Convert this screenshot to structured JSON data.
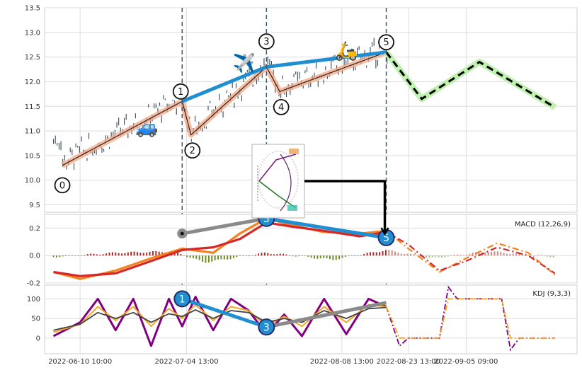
{
  "chart_data": [
    {
      "type": "candlestick",
      "panel": "price",
      "yticks": [
        9.5,
        10.0,
        10.5,
        11.0,
        11.5,
        12.0,
        12.5,
        13.0,
        13.5
      ],
      "ylim": [
        9.35,
        13.5
      ],
      "x_range": [
        "2022-06-02",
        "2022-09-30"
      ],
      "candle_span": [
        "2022-06-04",
        "2022-08-19"
      ],
      "trend_line": {
        "x": [
          "2022-06-06",
          "2022-07-03",
          "2022-07-05",
          "2022-07-22",
          "2022-07-25",
          "2022-08-18"
        ],
        "y": [
          10.3,
          11.6,
          10.92,
          12.3,
          11.8,
          12.6
        ]
      },
      "wave_points": [
        {
          "label": "0",
          "x": "2022-06-06",
          "y": 10.3
        },
        {
          "label": "1",
          "x": "2022-07-03",
          "y": 11.6
        },
        {
          "label": "2",
          "x": "2022-07-05",
          "y": 10.92
        },
        {
          "label": "3",
          "x": "2022-07-22",
          "y": 12.3
        },
        {
          "label": "4",
          "x": "2022-07-25",
          "y": 11.8
        },
        {
          "label": "5",
          "x": "2022-08-18",
          "y": 12.6
        }
      ],
      "blue_projection": {
        "x": [
          "2022-07-03",
          "2022-07-22",
          "2022-08-18"
        ],
        "y": [
          11.6,
          12.3,
          12.6
        ]
      },
      "forecast": {
        "x": [
          "2022-08-18",
          "2022-08-26",
          "2022-09-08",
          "2022-09-25"
        ],
        "y": [
          12.6,
          11.65,
          12.4,
          11.48
        ]
      },
      "vlines": [
        "2022-07-03",
        "2022-07-22",
        "2022-08-18"
      ],
      "emojis": [
        {
          "char": "🚙",
          "x": "2022-06-25",
          "y": 10.95
        },
        {
          "char": "✈️",
          "x": "2022-07-17",
          "y": 12.25
        },
        {
          "char": "🛵",
          "x": "2022-08-09",
          "y": 12.5
        }
      ]
    },
    {
      "type": "line",
      "panel": "macd",
      "title": "MACD (12,26,9)",
      "yticks": [
        -0.2,
        0.0,
        0.2
      ],
      "ylim": [
        -0.2,
        0.3
      ],
      "x": [
        "2022-06-04",
        "2022-06-10",
        "2022-06-18",
        "2022-06-26",
        "2022-07-03",
        "2022-07-10",
        "2022-07-16",
        "2022-07-22",
        "2022-07-28",
        "2022-08-04",
        "2022-08-12",
        "2022-08-18"
      ],
      "series": [
        {
          "color": "#f5821f",
          "values": [
            -0.12,
            -0.17,
            -0.11,
            -0.02,
            0.05,
            0.02,
            0.16,
            0.27,
            0.22,
            0.17,
            0.16,
            0.18
          ]
        },
        {
          "color": "#d62728",
          "values": [
            -0.12,
            -0.15,
            -0.13,
            -0.04,
            0.04,
            0.06,
            0.12,
            0.24,
            0.21,
            0.18,
            0.14,
            0.17
          ]
        }
      ],
      "forecast": {
        "x": [
          "2022-08-18",
          "2022-08-23",
          "2022-08-30",
          "2022-09-05",
          "2022-09-12",
          "2022-09-19",
          "2022-09-25"
        ],
        "series": [
          {
            "color": "#f5821f",
            "values": [
              0.18,
              0.05,
              -0.12,
              -0.02,
              0.09,
              0.02,
              -0.14
            ]
          },
          {
            "color": "#d62728",
            "values": [
              0.17,
              0.08,
              -0.11,
              -0.04,
              0.06,
              0.0,
              -0.13
            ]
          }
        ]
      },
      "histogram": {
        "x": [
          "2022-06-04",
          "2022-06-18",
          "2022-07-01",
          "2022-07-08",
          "2022-07-22",
          "2022-08-06",
          "2022-08-18",
          "2022-08-28",
          "2022-09-10",
          "2022-09-25"
        ],
        "values": [
          -0.01,
          0.02,
          0.03,
          -0.05,
          0.02,
          -0.03,
          0.04,
          -0.02,
          0.03,
          -0.01
        ]
      },
      "markers": [
        {
          "label": "",
          "x": "2022-07-03",
          "y": 0.16
        },
        {
          "label": "3",
          "x": "2022-07-22",
          "y": 0.27
        },
        {
          "label": "5",
          "x": "2022-08-18",
          "y": 0.13
        }
      ]
    },
    {
      "type": "line",
      "panel": "kdj",
      "title": "KDJ (9,3,3)",
      "yticks": [
        0,
        50,
        100
      ],
      "ylim": [
        -40,
        135
      ],
      "x_ticklabels": [
        "2022-06-10 10:00",
        "2022-07-04 13:00",
        "2022-08-08 13:00",
        "2022-08-23 13:00",
        "2022-09-05 09:00"
      ],
      "x_tick_dates": [
        "2022-06-10",
        "2022-07-04",
        "2022-08-08",
        "2022-08-23",
        "2022-09-05"
      ],
      "x": [
        "2022-06-04",
        "2022-06-10",
        "2022-06-14",
        "2022-06-18",
        "2022-06-22",
        "2022-06-26",
        "2022-06-30",
        "2022-07-03",
        "2022-07-06",
        "2022-07-10",
        "2022-07-14",
        "2022-07-18",
        "2022-07-22",
        "2022-07-26",
        "2022-07-30",
        "2022-08-04",
        "2022-08-09",
        "2022-08-14",
        "2022-08-18"
      ],
      "series": [
        {
          "color": "#800080",
          "values": [
            5,
            40,
            100,
            20,
            100,
            -20,
            100,
            30,
            105,
            20,
            100,
            70,
            10,
            60,
            5,
            100,
            10,
            100,
            80
          ]
        },
        {
          "color": "#f5a623",
          "values": [
            15,
            35,
            80,
            45,
            80,
            30,
            75,
            50,
            85,
            45,
            80,
            70,
            30,
            55,
            30,
            80,
            40,
            85,
            80
          ]
        },
        {
          "color": "#444444",
          "values": [
            20,
            35,
            65,
            50,
            65,
            40,
            62,
            55,
            72,
            50,
            70,
            65,
            40,
            50,
            40,
            70,
            50,
            75,
            78
          ]
        }
      ],
      "forecast": {
        "x": [
          "2022-08-18",
          "2022-08-21",
          "2022-08-23",
          "2022-08-30",
          "2022-09-01",
          "2022-09-03",
          "2022-09-13",
          "2022-09-15",
          "2022-09-17",
          "2022-09-25"
        ],
        "series": [
          {
            "color": "#800080",
            "values": [
              80,
              -20,
              0,
              0,
              130,
              100,
              100,
              -30,
              0,
              0
            ]
          },
          {
            "color": "#f5a623",
            "values": [
              80,
              0,
              0,
              0,
              100,
              100,
              100,
              0,
              0,
              0
            ]
          }
        ]
      },
      "markers": [
        {
          "label": "1",
          "x": "2022-07-03",
          "y": 100
        },
        {
          "label": "3",
          "x": "2022-07-22",
          "y": 28
        },
        {
          "label": "",
          "x": "2022-08-18",
          "y": 90
        }
      ]
    }
  ]
}
